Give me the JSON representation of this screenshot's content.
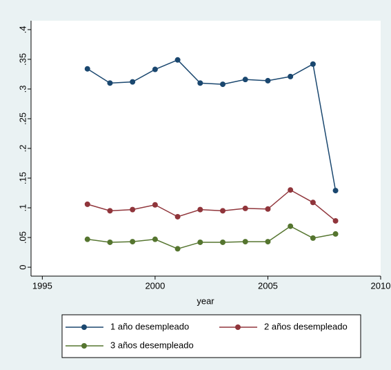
{
  "chart_data": {
    "type": "line",
    "x_label": "year",
    "x": [
      1997,
      1998,
      1999,
      2000,
      2001,
      2002,
      2003,
      2004,
      2005,
      2006,
      2007,
      2008
    ],
    "series": [
      {
        "name": "1 año desempleado",
        "color": "#1a476f",
        "values": [
          0.334,
          0.31,
          0.312,
          0.333,
          0.349,
          0.31,
          0.308,
          0.316,
          0.314,
          0.321,
          0.342,
          0.129
        ]
      },
      {
        "name": "2 años desempleado",
        "color": "#90353b",
        "values": [
          0.106,
          0.095,
          0.097,
          0.105,
          0.085,
          0.097,
          0.095,
          0.099,
          0.098,
          0.13,
          0.109,
          0.078
        ]
      },
      {
        "name": "3 años desempleado",
        "color": "#55752f",
        "values": [
          0.047,
          0.042,
          0.043,
          0.047,
          0.031,
          0.042,
          0.042,
          0.043,
          0.043,
          0.069,
          0.049,
          0.056
        ]
      }
    ],
    "xlim": [
      1994.5,
      2010
    ],
    "xticks": [
      1995,
      2000,
      2005,
      2010
    ],
    "ylim": [
      -0.015,
      0.415
    ],
    "yticks": [
      0,
      {
        "value": 0.05,
        "label": ".05"
      },
      {
        "value": 0.1,
        "label": ".1"
      },
      {
        "value": 0.15,
        "label": ".15"
      },
      {
        "value": 0.2,
        "label": ".2"
      },
      {
        "value": 0.25,
        "label": ".25"
      },
      {
        "value": 0.3,
        "label": ".3"
      },
      {
        "value": 0.35,
        "label": ".35"
      },
      {
        "value": 0.4,
        "label": ".4"
      }
    ],
    "grid": false,
    "legend": "bottom"
  }
}
